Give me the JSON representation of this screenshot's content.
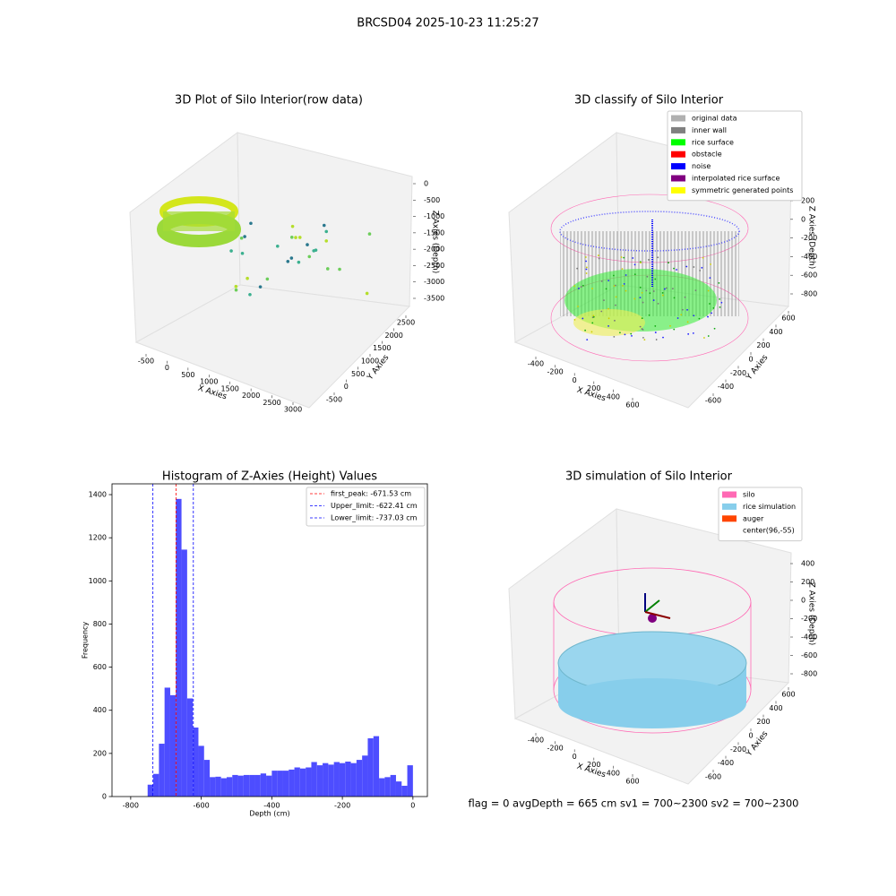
{
  "suptitle": "BRCSD04 2025-10-23 11:25:27",
  "footer": "flag = 0     avgDepth = 665 cm  sv1 = 700~2300  sv2 = 700~2300",
  "chart_data": [
    {
      "type": "scatter3d",
      "title": "3D Plot of Silo Interior(row data)",
      "xlabel": "X Axies",
      "ylabel": "Y Axies",
      "zlabel": "Z Axies (Depth)",
      "xticks": [
        -500,
        0,
        500,
        1000,
        1500,
        2000,
        2500,
        3000
      ],
      "yticks": [
        -500,
        0,
        500,
        1000,
        1500,
        2000,
        2500
      ],
      "zticks": [
        0,
        -500,
        -1000,
        -1500,
        -2000,
        -2500,
        -3000,
        -3500
      ]
    },
    {
      "type": "scatter3d",
      "title": "3D classify of Silo Interior",
      "xlabel": "X Axies",
      "ylabel": "Y Axies",
      "zlabel": "Z Axies (Depth)",
      "xticks": [
        -400,
        -200,
        0,
        200,
        400,
        600
      ],
      "yticks": [
        -600,
        -400,
        -200,
        0,
        200,
        400,
        600
      ],
      "zticks": [
        200,
        0,
        -200,
        -400,
        -600,
        -800
      ],
      "legend": [
        {
          "label": "original data",
          "color": "#b0b0b0"
        },
        {
          "label": "inner wall",
          "color": "#808080"
        },
        {
          "label": "rice surface",
          "color": "#00ff00"
        },
        {
          "label": "obstacle",
          "color": "#ff0000"
        },
        {
          "label": "noise",
          "color": "#0000ff"
        },
        {
          "label": "interpolated rice surface",
          "color": "#800080"
        },
        {
          "label": "symmetric generated points",
          "color": "#ffff00"
        }
      ]
    },
    {
      "type": "histogram",
      "title": "Histogram of Z-Axies (Height) Values",
      "xlabel": "Depth (cm)",
      "ylabel": "Frequency",
      "color": "#4d4dff",
      "bins": [
        -752,
        -736,
        -720,
        -704,
        -688,
        -672,
        -656,
        -640,
        -624,
        -608,
        -592,
        -576,
        -560,
        -544,
        -528,
        -512,
        -496,
        -480,
        -464,
        -448,
        -432,
        -416,
        -400,
        -384,
        -368,
        -352,
        -336,
        -320,
        -304,
        -288,
        -272,
        -256,
        -240,
        -224,
        -208,
        -192,
        -176,
        -160,
        -144,
        -128,
        -112,
        -96,
        -80,
        -64,
        -48,
        -32,
        -16,
        0
      ],
      "values": [
        55,
        105,
        245,
        505,
        470,
        1380,
        1145,
        455,
        320,
        235,
        170,
        90,
        92,
        85,
        90,
        100,
        97,
        100,
        100,
        100,
        107,
        97,
        120,
        120,
        120,
        125,
        135,
        130,
        135,
        160,
        145,
        155,
        148,
        160,
        155,
        162,
        155,
        170,
        190,
        270,
        280,
        85,
        90,
        100,
        70,
        50,
        145
      ],
      "xlim": [
        -853,
        41
      ],
      "ylim": [
        0,
        1450
      ],
      "xticks": [
        -800,
        -600,
        -400,
        -200,
        0
      ],
      "yticks": [
        0,
        200,
        400,
        600,
        800,
        1000,
        1200,
        1400
      ],
      "vlines": [
        {
          "label": "first_peak: -671.53 cm",
          "value": -671.53,
          "color": "#ff0000"
        },
        {
          "label": "Upper_limit: -622.41 cm",
          "value": -622.41,
          "color": "#0000ff"
        },
        {
          "label": "Lower_limit: -737.03 cm",
          "value": -737.03,
          "color": "#0000ff"
        }
      ]
    },
    {
      "type": "surface3d",
      "title": "3D simulation of Silo Interior",
      "xlabel": "X Axies",
      "ylabel": "Y Axies",
      "zlabel": "Z Axies (Depth)",
      "xticks": [
        -400,
        -200,
        0,
        200,
        400,
        600
      ],
      "yticks": [
        -600,
        -400,
        -200,
        0,
        200,
        400,
        600
      ],
      "zticks": [
        400,
        200,
        0,
        -200,
        -400,
        -600,
        -800
      ],
      "legend": [
        {
          "label": "silo",
          "color": "#ff69b4"
        },
        {
          "label": "rice simulation",
          "color": "#87ceeb"
        },
        {
          "label": "auger",
          "color": "#ff4500"
        },
        {
          "label": "center(96,-55)",
          "color": "#ffffff"
        }
      ]
    }
  ]
}
